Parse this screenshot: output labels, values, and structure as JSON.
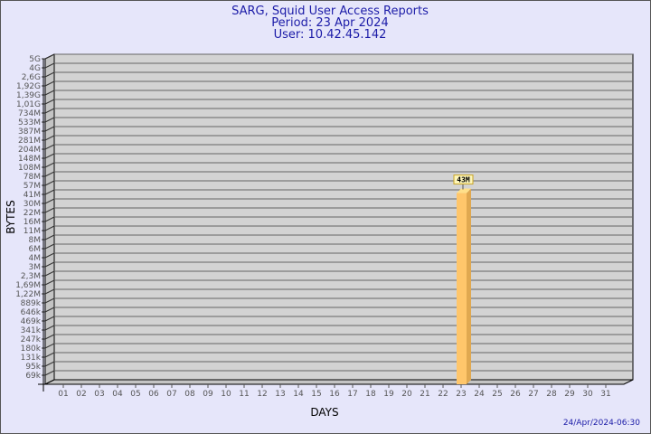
{
  "chart_data": {
    "type": "bar",
    "title": "SARG, Squid User Access Reports",
    "subtitle": [
      "Period: 23 Apr 2024",
      "User: 10.42.45.142"
    ],
    "xlabel": "DAYS",
    "ylabel": "BYTES",
    "y_scale": "log",
    "grid": true,
    "y_tick_labels": [
      "5G",
      "4G",
      "2,6G",
      "1,92G",
      "1,39G",
      "1,01G",
      "734M",
      "533M",
      "387M",
      "281M",
      "204M",
      "148M",
      "108M",
      "78M",
      "57M",
      "41M",
      "30M",
      "22M",
      "16M",
      "11M",
      "8M",
      "6M",
      "4M",
      "3M",
      "2,3M",
      "1,69M",
      "1,22M",
      "889k",
      "646k",
      "469k",
      "341k",
      "247k",
      "180k",
      "131k",
      "95k",
      "69k"
    ],
    "categories": [
      "01",
      "02",
      "03",
      "04",
      "05",
      "06",
      "07",
      "08",
      "09",
      "10",
      "11",
      "12",
      "13",
      "14",
      "15",
      "16",
      "17",
      "18",
      "19",
      "20",
      "21",
      "22",
      "23",
      "24",
      "25",
      "26",
      "27",
      "28",
      "29",
      "30",
      "31"
    ],
    "bars": [
      {
        "category": "23",
        "value": "43M",
        "bytes": 43000000
      }
    ],
    "colors": {
      "bar": "#ffc66b",
      "bar_side": "#e0a850",
      "bar_top": "#ffe08a",
      "wall": "#d3d3d3",
      "title": "#1c1ca8",
      "background": "#e6e6fa"
    }
  },
  "footer": {
    "timestamp": "24/Apr/2024-06:30"
  }
}
